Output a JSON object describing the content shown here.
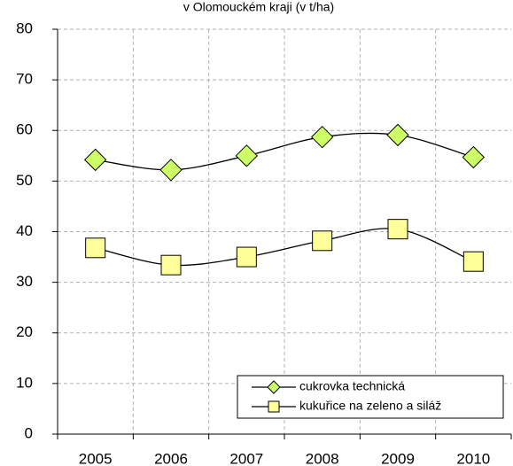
{
  "chart_data": {
    "type": "line",
    "title": "v Olomouckém kraji (v t/ha)",
    "categories": [
      "2005",
      "2006",
      "2007",
      "2008",
      "2009",
      "2010"
    ],
    "series": [
      {
        "name": "cukrovka technická",
        "color": "#ccff66",
        "marker": "diamond",
        "values": [
          54.2,
          52.2,
          55.0,
          58.7,
          59.1,
          54.7
        ]
      },
      {
        "name": "kukuřice na zeleno  a siláž",
        "color": "#ffff99",
        "marker": "square",
        "values": [
          36.8,
          33.4,
          35.0,
          38.2,
          40.5,
          34.1
        ]
      }
    ],
    "ylim": [
      0,
      80
    ],
    "yticks": [
      0,
      10,
      20,
      30,
      40,
      50,
      60,
      70,
      80
    ],
    "grid": true,
    "smooth": true,
    "legend": "lower right"
  }
}
